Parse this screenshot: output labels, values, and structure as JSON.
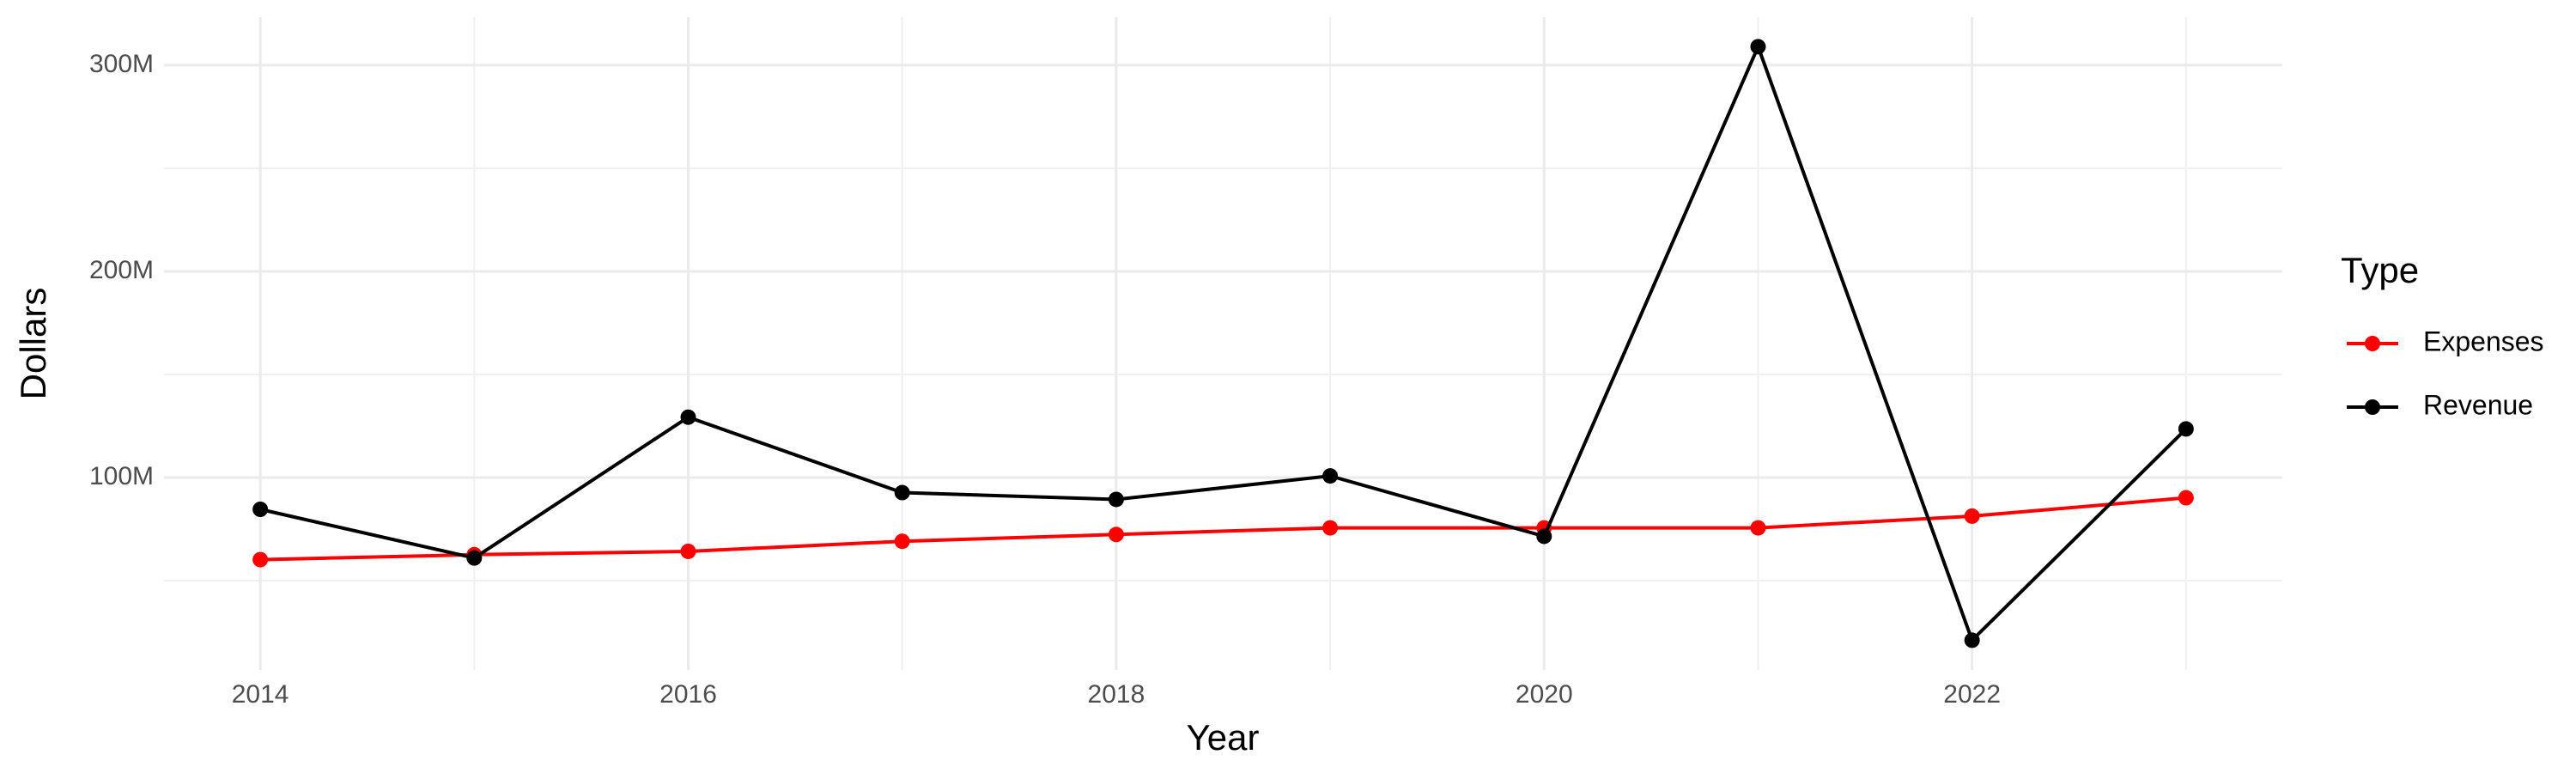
{
  "chart_data": {
    "type": "line",
    "x_label": "Year",
    "y_label": "Dollars",
    "x": [
      2014,
      2015,
      2016,
      2017,
      2018,
      2019,
      2020,
      2021,
      2022,
      2023
    ],
    "series": [
      {
        "name": "Expenses",
        "color": "#ff0000",
        "values": [
          60200000,
          62600000,
          64200000,
          69100000,
          72400000,
          75600000,
          75600000,
          75600000,
          81300000,
          90200000
        ]
      },
      {
        "name": "Revenue",
        "color": "#000000",
        "values": [
          84600000,
          61000000,
          129300000,
          92700000,
          89400000,
          100800000,
          71500000,
          309000000,
          21100000,
          123600000
        ]
      }
    ],
    "xlim": [
      2013.55,
      2023.45
    ],
    "xticks": [
      2014,
      2016,
      2018,
      2020,
      2022
    ],
    "ylim": [
      6700000,
      323300000
    ],
    "yticks": [
      {
        "value": 100000000,
        "label": "100M"
      },
      {
        "value": 200000000,
        "label": "200M"
      },
      {
        "value": 300000000,
        "label": "300M"
      }
    ],
    "grid": true,
    "legend_title": "Type",
    "legend_position": "right"
  }
}
